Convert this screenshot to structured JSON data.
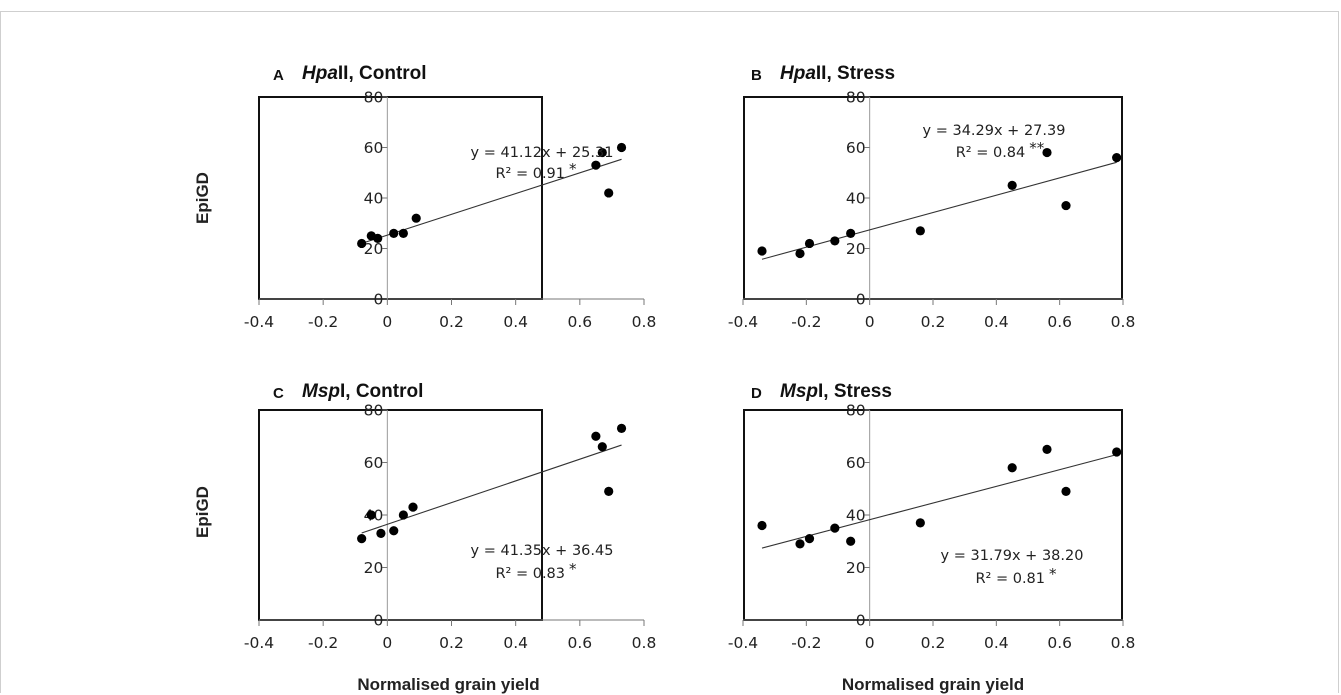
{
  "chart_data": [
    {
      "type": "scatter",
      "letter": "A",
      "title_italic": "Hpa",
      "title_rest": "II, Control",
      "ylabel": "EpiGD",
      "xlabel": "",
      "xlim": [
        -0.4,
        0.8
      ],
      "ylim": [
        0,
        80
      ],
      "xticks": [
        "-0.4",
        "-0.2",
        "0",
        "0.2",
        "0.4",
        "0.6",
        "0.8"
      ],
      "yticks": [
        "0",
        "20",
        "40",
        "60",
        "80"
      ],
      "points": [
        [
          -0.08,
          22
        ],
        [
          -0.05,
          25
        ],
        [
          -0.03,
          24
        ],
        [
          0.02,
          26
        ],
        [
          0.05,
          26
        ],
        [
          0.09,
          32
        ],
        [
          0.65,
          53
        ],
        [
          0.67,
          58
        ],
        [
          0.69,
          42
        ],
        [
          0.73,
          60
        ]
      ],
      "trendline": {
        "slope": 41.12,
        "intercept": 25.31,
        "x_range": [
          -0.08,
          0.73
        ]
      },
      "equation": "y = 41.12x + 25.31",
      "r2_label": "R² = 0.91",
      "significance": "*"
    },
    {
      "type": "scatter",
      "letter": "B",
      "title_italic": "Hpa",
      "title_rest": "II, Stress",
      "ylabel": "",
      "xlabel": "",
      "xlim": [
        -0.4,
        0.8
      ],
      "ylim": [
        0,
        80
      ],
      "xticks": [
        "-0.4",
        "-0.2",
        "0",
        "0.2",
        "0.4",
        "0.6",
        "0.8"
      ],
      "yticks": [
        "0",
        "20",
        "40",
        "60",
        "80"
      ],
      "points": [
        [
          -0.34,
          19
        ],
        [
          -0.22,
          18
        ],
        [
          -0.19,
          22
        ],
        [
          -0.11,
          23
        ],
        [
          -0.06,
          26
        ],
        [
          0.16,
          27
        ],
        [
          0.45,
          45
        ],
        [
          0.56,
          58
        ],
        [
          0.62,
          37
        ],
        [
          0.78,
          56
        ]
      ],
      "trendline": {
        "slope": 34.29,
        "intercept": 27.39,
        "x_range": [
          -0.34,
          0.78
        ]
      },
      "equation": "y = 34.29x + 27.39",
      "r2_label": "R² = 0.84",
      "significance": "**"
    },
    {
      "type": "scatter",
      "letter": "C",
      "title_italic": "Msp",
      "title_rest": "I, Control",
      "ylabel": "EpiGD",
      "xlabel": "Normalised grain yield",
      "xlim": [
        -0.4,
        0.8
      ],
      "ylim": [
        0,
        80
      ],
      "xticks": [
        "-0.4",
        "-0.2",
        "0",
        "0.2",
        "0.4",
        "0.6",
        "0.8"
      ],
      "yticks": [
        "0",
        "20",
        "40",
        "60",
        "80"
      ],
      "points": [
        [
          -0.08,
          31
        ],
        [
          -0.05,
          40
        ],
        [
          -0.02,
          33
        ],
        [
          0.02,
          34
        ],
        [
          0.05,
          40
        ],
        [
          0.08,
          43
        ],
        [
          0.65,
          70
        ],
        [
          0.67,
          66
        ],
        [
          0.69,
          49
        ],
        [
          0.73,
          73
        ]
      ],
      "trendline": {
        "slope": 41.35,
        "intercept": 36.45,
        "x_range": [
          -0.08,
          0.73
        ]
      },
      "equation": "y = 41.35x + 36.45",
      "r2_label": "R² = 0.83",
      "significance": "*"
    },
    {
      "type": "scatter",
      "letter": "D",
      "title_italic": "Msp",
      "title_rest": "I, Stress",
      "ylabel": "",
      "xlabel": "Normalised grain yield",
      "xlim": [
        -0.4,
        0.8
      ],
      "ylim": [
        0,
        80
      ],
      "xticks": [
        "-0.4",
        "-0.2",
        "0",
        "0.2",
        "0.4",
        "0.6",
        "0.8"
      ],
      "yticks": [
        "0",
        "20",
        "40",
        "60",
        "80"
      ],
      "points": [
        [
          -0.34,
          36
        ],
        [
          -0.22,
          29
        ],
        [
          -0.19,
          31
        ],
        [
          -0.11,
          35
        ],
        [
          -0.06,
          30
        ],
        [
          0.16,
          37
        ],
        [
          0.45,
          58
        ],
        [
          0.56,
          65
        ],
        [
          0.62,
          49
        ],
        [
          0.78,
          64
        ]
      ],
      "trendline": {
        "slope": 31.79,
        "intercept": 38.2,
        "x_range": [
          -0.34,
          0.78
        ]
      },
      "equation": "y = 31.79x + 38.20",
      "r2_label": "R² = 0.81",
      "significance": "*"
    }
  ]
}
